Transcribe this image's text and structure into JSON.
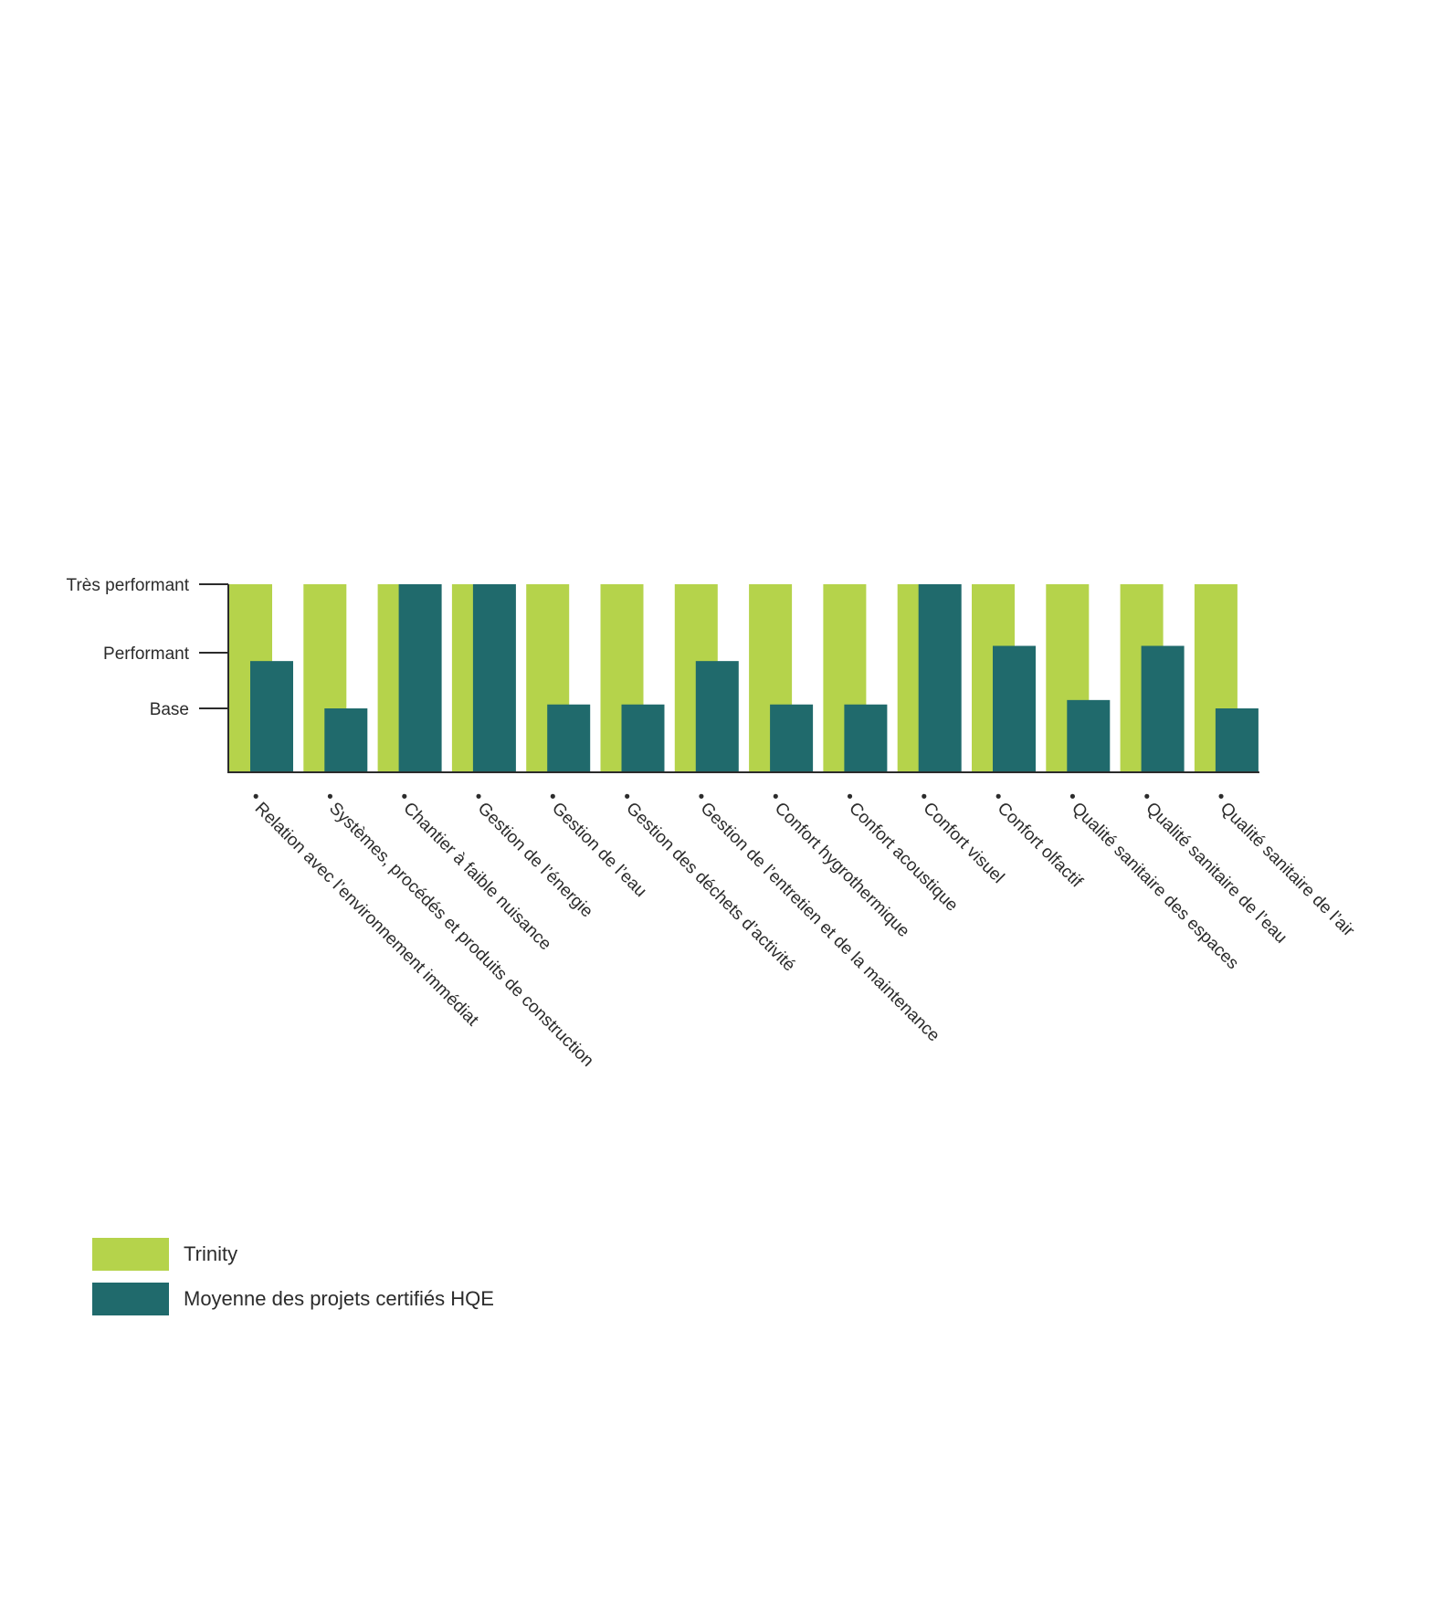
{
  "chart_data": {
    "type": "bar",
    "categories": [
      "Relation avec l’environnement immédiat",
      "Systèmes, procédés et produits de construction",
      "Chantier à faible nuisance",
      "Gestion de l’énergie",
      "Gestion de l’eau",
      "Gestion des déchets d’activité",
      "Gestion de l’entretien et de la maintenance",
      "Confort hygrothermique",
      "Confort acoustique",
      "Confort visuel",
      "Confort olfactif",
      "Qualité sanitaire des espaces",
      "Qualité sanitaire de l’eau",
      "Qualité sanitaire de l’air"
    ],
    "yticks": [
      {
        "value": 1,
        "label": "Base"
      },
      {
        "value": 2,
        "label": "Performant"
      },
      {
        "value": 3,
        "label": "Très performant"
      }
    ],
    "ylim": [
      0,
      3
    ],
    "series": [
      {
        "name": "Trinity",
        "color": "#b5d34b",
        "values": [
          3,
          3,
          3,
          3,
          3,
          3,
          3,
          3,
          3,
          3,
          3,
          3,
          3,
          3
        ]
      },
      {
        "name": "Moyenne des projets certifiés HQE",
        "color": "#206a6c",
        "values": [
          1.85,
          1.0,
          3,
          3,
          1.07,
          1.07,
          1.85,
          1.07,
          1.07,
          3,
          2.1,
          1.15,
          2.1,
          1.0
        ]
      }
    ],
    "grid": false,
    "legend_position": "bottom-left"
  }
}
